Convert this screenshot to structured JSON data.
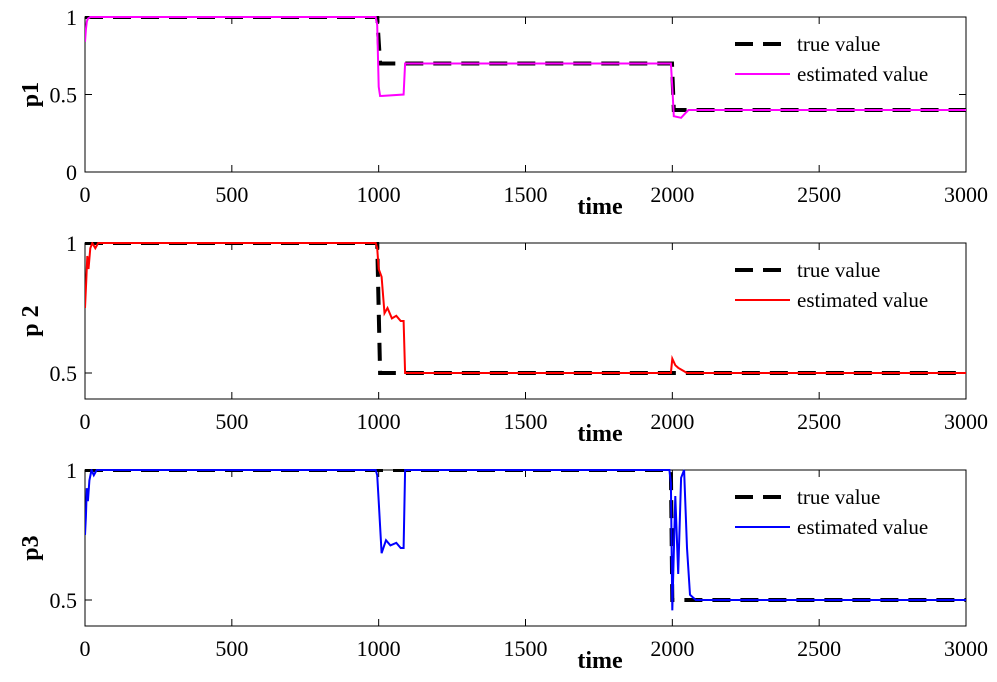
{
  "chart_data": [
    {
      "type": "line",
      "ylabel": "p1",
      "xlabel": "time",
      "xlim": [
        0,
        3000
      ],
      "ylim": [
        0,
        1
      ],
      "x_ticks": [
        "0",
        "500",
        "1000",
        "1500",
        "2000",
        "2500",
        "3000"
      ],
      "y_ticks": [
        "0",
        "0.5",
        "1"
      ],
      "legend": {
        "position": "top-right",
        "entries": [
          "true value",
          "estimated value"
        ]
      },
      "series": [
        {
          "name": "true value",
          "color": "#000000",
          "style": "dashed",
          "x": [
            0,
            995,
            1005,
            1999,
            2005,
            3000
          ],
          "y": [
            1,
            1,
            0.7,
            0.7,
            0.4,
            0.4
          ]
        },
        {
          "name": "estimated value",
          "color": "#ff00ff",
          "style": "solid",
          "x": [
            0,
            3,
            6,
            10,
            18,
            30,
            990,
            995,
            1000,
            1005,
            1085,
            1090,
            1995,
            2000,
            2005,
            2030,
            2045,
            2055,
            3000
          ],
          "y": [
            0.84,
            0.92,
            0.97,
            0.99,
            1.0,
            1.0,
            1.0,
            0.95,
            0.55,
            0.49,
            0.5,
            0.7,
            0.7,
            0.55,
            0.36,
            0.35,
            0.38,
            0.4,
            0.4
          ]
        }
      ]
    },
    {
      "type": "line",
      "ylabel": "p 2",
      "xlabel": "time",
      "xlim": [
        0,
        3000
      ],
      "ylim": [
        0.4,
        1
      ],
      "x_ticks": [
        "0",
        "500",
        "1000",
        "1500",
        "2000",
        "2500",
        "3000"
      ],
      "y_ticks": [
        "0.5",
        "1"
      ],
      "legend": {
        "position": "top-right",
        "entries": [
          "true value",
          "estimated value"
        ]
      },
      "series": [
        {
          "name": "true value",
          "color": "#000000",
          "style": "dashed",
          "x": [
            0,
            995,
            1005,
            3000
          ],
          "y": [
            1,
            1,
            0.5,
            0.5
          ]
        },
        {
          "name": "estimated value",
          "color": "#ff0000",
          "style": "solid",
          "x": [
            0,
            4,
            8,
            12,
            18,
            25,
            35,
            45,
            55,
            990,
            995,
            1000,
            1010,
            1020,
            1030,
            1045,
            1060,
            1075,
            1085,
            1090,
            1995,
            2000,
            2010,
            2020,
            2035,
            2050,
            3000
          ],
          "y": [
            0.75,
            0.85,
            0.95,
            0.9,
            0.98,
            1.0,
            0.98,
            1.0,
            1.0,
            1.0,
            0.98,
            0.9,
            0.87,
            0.73,
            0.75,
            0.71,
            0.72,
            0.7,
            0.7,
            0.5,
            0.5,
            0.555,
            0.53,
            0.52,
            0.51,
            0.5,
            0.5
          ]
        }
      ]
    },
    {
      "type": "line",
      "ylabel": "p3",
      "xlabel": "time",
      "xlim": [
        0,
        3000
      ],
      "ylim": [
        0.4,
        1
      ],
      "x_ticks": [
        "0",
        "500",
        "1000",
        "1500",
        "2000",
        "2500",
        "3000"
      ],
      "y_ticks": [
        "0.5",
        "1"
      ],
      "legend": {
        "position": "top-right",
        "entries": [
          "true value",
          "estimated value"
        ]
      },
      "series": [
        {
          "name": "true value",
          "color": "#000000",
          "style": "dashed",
          "x": [
            0,
            1995,
            2000,
            2005,
            3000
          ],
          "y": [
            1,
            1,
            0.5,
            0.5,
            0.5
          ]
        },
        {
          "name": "estimated value",
          "color": "#0000ff",
          "style": "solid",
          "x": [
            0,
            3,
            6,
            10,
            15,
            22,
            30,
            40,
            55,
            990,
            995,
            1000,
            1010,
            1025,
            1040,
            1060,
            1075,
            1085,
            1090,
            1990,
            1995,
            2000,
            2010,
            2020,
            2030,
            2040,
            2050,
            2060,
            2080,
            3000
          ],
          "y": [
            0.75,
            0.82,
            0.93,
            0.88,
            0.96,
            1.0,
            0.98,
            1.0,
            1.0,
            1.0,
            0.98,
            0.88,
            0.68,
            0.73,
            0.71,
            0.72,
            0.7,
            0.7,
            1.0,
            1.0,
            0.95,
            0.46,
            0.9,
            0.6,
            0.97,
            1.0,
            0.7,
            0.52,
            0.5,
            0.5
          ]
        }
      ]
    }
  ]
}
